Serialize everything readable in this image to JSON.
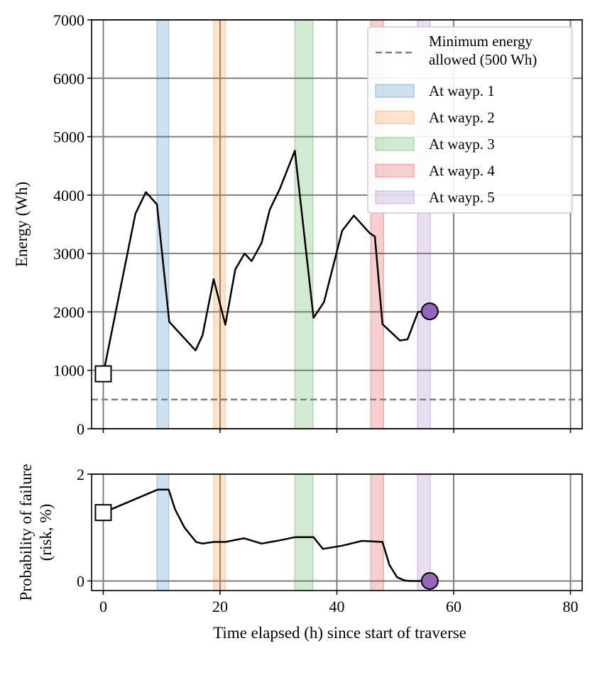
{
  "chart_data": [
    {
      "type": "line",
      "xlim": [
        -2,
        82
      ],
      "ylim": [
        0,
        7000
      ],
      "x_ticks": [
        "0",
        "20",
        "40",
        "60",
        "80"
      ],
      "x_tick_values": [
        0,
        20,
        40,
        60,
        80
      ],
      "y_ticks": [
        "0",
        "1000",
        "2000",
        "3000",
        "4000",
        "5000",
        "6000",
        "7000"
      ],
      "y_tick_values": [
        0,
        1000,
        2000,
        3000,
        4000,
        5000,
        6000,
        7000
      ],
      "ylabel": "Energy (Wh)",
      "xlabel": "",
      "grid": true,
      "series": [
        {
          "name": "",
          "color": "#000000",
          "x": [
            0,
            5.5,
            7.3,
            9.2,
            11.3,
            15.8,
            17,
            18.9,
            20.9,
            22.6,
            24.2,
            25.4,
            27.1,
            28.5,
            30.2,
            32.8,
            36,
            37.8,
            40.9,
            42.9,
            45.6,
            46.5,
            47.8,
            50.8,
            52.1,
            53.9,
            55.9
          ],
          "values": [
            940,
            3680,
            4050,
            3840,
            1830,
            1340,
            1600,
            2560,
            1780,
            2730,
            3000,
            2870,
            3180,
            3750,
            4100,
            4760,
            1900,
            2170,
            3390,
            3650,
            3350,
            3290,
            1790,
            1510,
            1530,
            2000,
            2010
          ]
        }
      ],
      "start_marker": {
        "x": 0,
        "y": 940,
        "shape": "square",
        "color": "#ffffff"
      },
      "end_marker": {
        "x": 55.9,
        "y": 2010,
        "shape": "circle",
        "color": "#9467bd"
      },
      "threshold": {
        "value": 500,
        "label": "Minimum energy allowed (500 Wh)",
        "label_lines": [
          "Minimum energy",
          "allowed (500 Wh)"
        ],
        "color": "#808080"
      },
      "waypoint_bands": [
        {
          "label": "At wayp. 1",
          "x0": 9.2,
          "x1": 11.2,
          "color": "#1f77b4"
        },
        {
          "label": "At wayp. 2",
          "x0": 18.9,
          "x1": 20.9,
          "color": "#ff7f0e"
        },
        {
          "label": "At wayp. 3",
          "x0": 32.8,
          "x1": 35.9,
          "color": "#2ca02c"
        },
        {
          "label": "At wayp. 4",
          "x0": 45.8,
          "x1": 48,
          "color": "#d62728"
        },
        {
          "label": "At wayp. 5",
          "x0": 53.8,
          "x1": 56,
          "color": "#9467bd"
        }
      ],
      "legend_position": "top-right"
    },
    {
      "type": "line",
      "xlim": [
        -2,
        82
      ],
      "ylim": [
        -0.18,
        2
      ],
      "x_ticks": [
        "0",
        "20",
        "40",
        "60",
        "80"
      ],
      "x_tick_values": [
        0,
        20,
        40,
        60,
        80
      ],
      "y_ticks": [
        "0",
        "2"
      ],
      "y_tick_values": [
        0,
        2
      ],
      "ylabel": "Probability of failure (risk, %)",
      "ylabel_lines": [
        "Probability of failure",
        "(risk, %)"
      ],
      "xlabel": "Time elapsed (h) since start of traverse",
      "grid": true,
      "series": [
        {
          "name": "",
          "color": "#000000",
          "x": [
            0,
            9.3,
            11.2,
            12.3,
            13.9,
            15.9,
            17,
            18.9,
            20.9,
            24.1,
            27.1,
            30.2,
            32.8,
            36,
            37.6,
            40.9,
            44.3,
            47.8,
            49,
            50.3,
            51.6,
            52.5,
            55.9
          ],
          "values": [
            1.28,
            1.71,
            1.71,
            1.34,
            1.0,
            0.73,
            0.7,
            0.73,
            0.73,
            0.8,
            0.7,
            0.76,
            0.82,
            0.82,
            0.6,
            0.66,
            0.75,
            0.73,
            0.3,
            0.07,
            0.01,
            0.0,
            0.0
          ]
        }
      ],
      "start_marker": {
        "x": 0,
        "y": 1.28,
        "shape": "square",
        "color": "#ffffff"
      },
      "end_marker": {
        "x": 55.9,
        "y": 0.0,
        "shape": "circle",
        "color": "#9467bd"
      },
      "waypoint_bands": [
        {
          "label": "At wayp. 1",
          "x0": 9.2,
          "x1": 11.2,
          "color": "#1f77b4"
        },
        {
          "label": "At wayp. 2",
          "x0": 18.9,
          "x1": 20.9,
          "color": "#ff7f0e"
        },
        {
          "label": "At wayp. 3",
          "x0": 32.8,
          "x1": 35.9,
          "color": "#2ca02c"
        },
        {
          "label": "At wayp. 4",
          "x0": 45.8,
          "x1": 48,
          "color": "#d62728"
        },
        {
          "label": "At wayp. 5",
          "x0": 53.8,
          "x1": 56,
          "color": "#9467bd"
        }
      ]
    }
  ]
}
